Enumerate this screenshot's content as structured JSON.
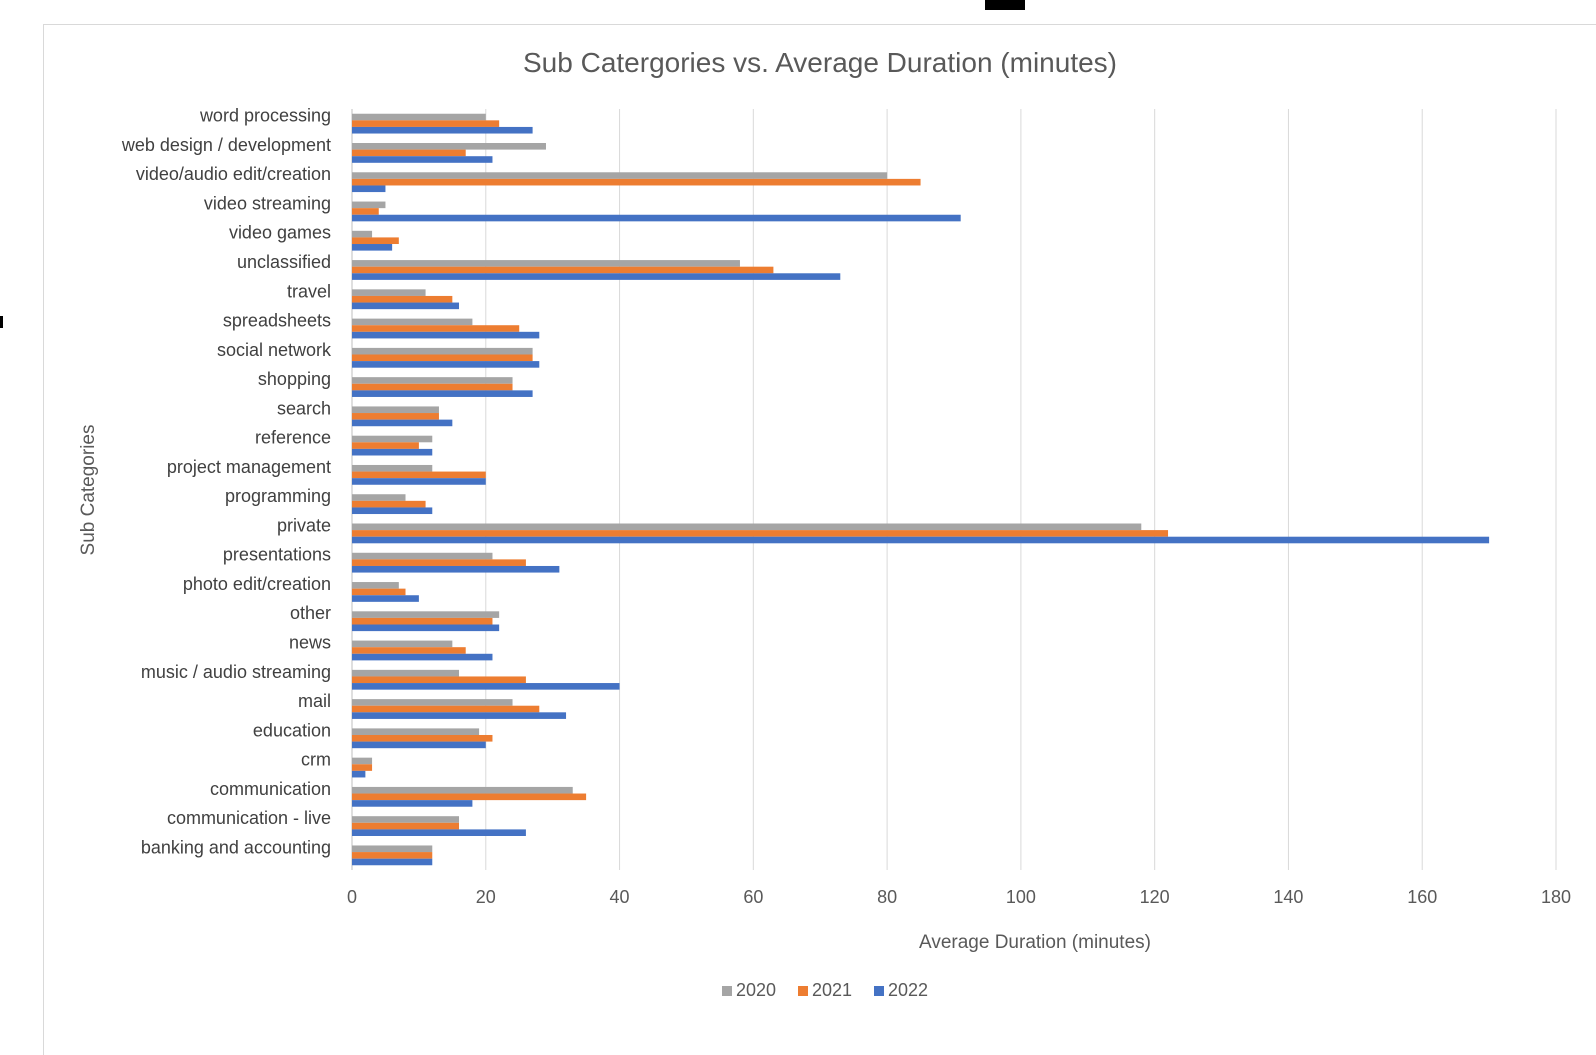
{
  "chart_data": {
    "type": "bar",
    "orientation": "horizontal",
    "title": "Sub Catergories vs. Average Duration (minutes)",
    "xlabel": "Average Duration (minutes)",
    "ylabel": "Sub Categories",
    "xlim": [
      0,
      180
    ],
    "xticks": [
      0,
      20,
      40,
      60,
      80,
      100,
      120,
      140,
      160,
      180
    ],
    "grid": "vertical",
    "legend_position": "bottom",
    "categories": [
      "word processing",
      "web design / development",
      "video/audio edit/creation",
      "video streaming",
      "video games",
      "unclassified",
      "travel",
      "spreadsheets",
      "social network",
      "shopping",
      "search",
      "reference",
      "project management",
      "programming",
      "private",
      "presentations",
      "photo edit/creation",
      "other",
      "news",
      "music / audio streaming",
      "mail",
      "education",
      "crm",
      "communication",
      "communication - live",
      "banking and accounting"
    ],
    "series": [
      {
        "name": "2020",
        "color": "#a5a5a5",
        "values": [
          20,
          29,
          80,
          5,
          3,
          58,
          11,
          18,
          27,
          24,
          13,
          12,
          12,
          8,
          118,
          21,
          7,
          22,
          15,
          16,
          24,
          19,
          3,
          33,
          16,
          12
        ]
      },
      {
        "name": "2021",
        "color": "#ed7d31",
        "values": [
          22,
          17,
          85,
          4,
          7,
          63,
          15,
          25,
          27,
          24,
          13,
          10,
          20,
          11,
          122,
          26,
          8,
          21,
          17,
          26,
          28,
          21,
          3,
          35,
          16,
          12
        ]
      },
      {
        "name": "2022",
        "color": "#4472c4",
        "values": [
          27,
          21,
          5,
          91,
          6,
          73,
          16,
          28,
          28,
          27,
          15,
          12,
          20,
          12,
          170,
          31,
          10,
          22,
          21,
          40,
          32,
          20,
          2,
          18,
          26,
          12
        ]
      }
    ]
  }
}
